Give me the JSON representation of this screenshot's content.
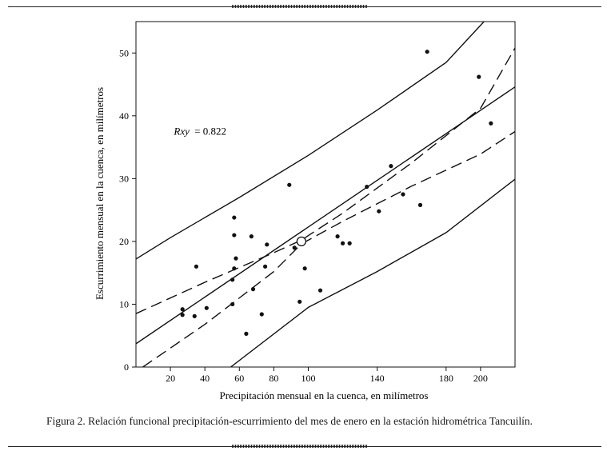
{
  "figure": {
    "caption": "Figura 2. Relación funcional precipitación-escurrimiento del mes de enero en la estación hidrométrica Tancuilín."
  },
  "chart_data": {
    "type": "scatter",
    "xlabel": "Precipitación mensual en la cuenca, en milímetros",
    "ylabel": "Escurrimiento mensual en la cuenca, en milímetros",
    "xlim": [
      0,
      220
    ],
    "ylim": [
      0,
      55
    ],
    "x_ticks": [
      20,
      40,
      60,
      80,
      100,
      140,
      180,
      200
    ],
    "x_tick_labels": [
      "20",
      "40",
      "60",
      "80",
      "100",
      "140",
      "180",
      "200"
    ],
    "y_ticks": [
      0,
      10,
      20,
      30,
      40,
      50
    ],
    "y_tick_labels": [
      "0",
      "10",
      "20",
      "30",
      "40",
      "50"
    ],
    "annotation": {
      "label": "Rxy",
      "value": "= 0.822",
      "x": 22,
      "y": 37
    },
    "mean_point": {
      "x": 96,
      "y": 20
    },
    "points": [
      {
        "x": 27,
        "y": 9.2
      },
      {
        "x": 27,
        "y": 8.3
      },
      {
        "x": 34,
        "y": 8.1
      },
      {
        "x": 35,
        "y": 16
      },
      {
        "x": 41,
        "y": 9.4
      },
      {
        "x": 56,
        "y": 13.9
      },
      {
        "x": 56,
        "y": 10
      },
      {
        "x": 57,
        "y": 15.7
      },
      {
        "x": 57,
        "y": 21
      },
      {
        "x": 57,
        "y": 23.8
      },
      {
        "x": 58,
        "y": 17.3
      },
      {
        "x": 64,
        "y": 5.3
      },
      {
        "x": 67,
        "y": 20.8
      },
      {
        "x": 68,
        "y": 12.4
      },
      {
        "x": 73,
        "y": 8.4
      },
      {
        "x": 75,
        "y": 16
      },
      {
        "x": 76,
        "y": 19.5
      },
      {
        "x": 89,
        "y": 29
      },
      {
        "x": 92,
        "y": 19
      },
      {
        "x": 95,
        "y": 10.4
      },
      {
        "x": 98,
        "y": 15.7
      },
      {
        "x": 107,
        "y": 12.2
      },
      {
        "x": 117,
        "y": 20.8
      },
      {
        "x": 120,
        "y": 19.7
      },
      {
        "x": 124,
        "y": 19.7
      },
      {
        "x": 134,
        "y": 28.7
      },
      {
        "x": 141,
        "y": 24.8
      },
      {
        "x": 148,
        "y": 32
      },
      {
        "x": 155,
        "y": 27.5
      },
      {
        "x": 165,
        "y": 25.8
      },
      {
        "x": 169,
        "y": 50.2
      },
      {
        "x": 199,
        "y": 46.2
      },
      {
        "x": 206,
        "y": 38.8
      }
    ],
    "lines": [
      {
        "name": "regression",
        "style": "solid",
        "points": [
          [
            0,
            3.7
          ],
          [
            220,
            44.6
          ]
        ]
      },
      {
        "name": "upper-prediction",
        "style": "solid",
        "points": [
          [
            0,
            17.2
          ],
          [
            20,
            20.6
          ],
          [
            60,
            27.0
          ],
          [
            100,
            33.7
          ],
          [
            140,
            40.9
          ],
          [
            180,
            48.5
          ],
          [
            202,
            55
          ]
        ]
      },
      {
        "name": "lower-prediction",
        "style": "solid",
        "points": [
          [
            55,
            0
          ],
          [
            100,
            9.5
          ],
          [
            140,
            15.2
          ],
          [
            180,
            21.4
          ],
          [
            220,
            29.9
          ]
        ]
      },
      {
        "name": "upper-confidence",
        "style": "dashed",
        "points": [
          [
            0,
            8.5
          ],
          [
            40,
            13.5
          ],
          [
            80,
            18.2
          ],
          [
            96,
            20.2
          ],
          [
            120,
            24.5
          ],
          [
            160,
            32.5
          ],
          [
            200,
            41.2
          ],
          [
            220,
            50.8
          ]
        ]
      },
      {
        "name": "lower-confidence",
        "style": "dashed",
        "points": [
          [
            4,
            0
          ],
          [
            40,
            6.8
          ],
          [
            80,
            15.2
          ],
          [
            96,
            19.6
          ],
          [
            120,
            23.2
          ],
          [
            160,
            28.8
          ],
          [
            200,
            33.9
          ],
          [
            220,
            37.5
          ]
        ]
      }
    ]
  }
}
